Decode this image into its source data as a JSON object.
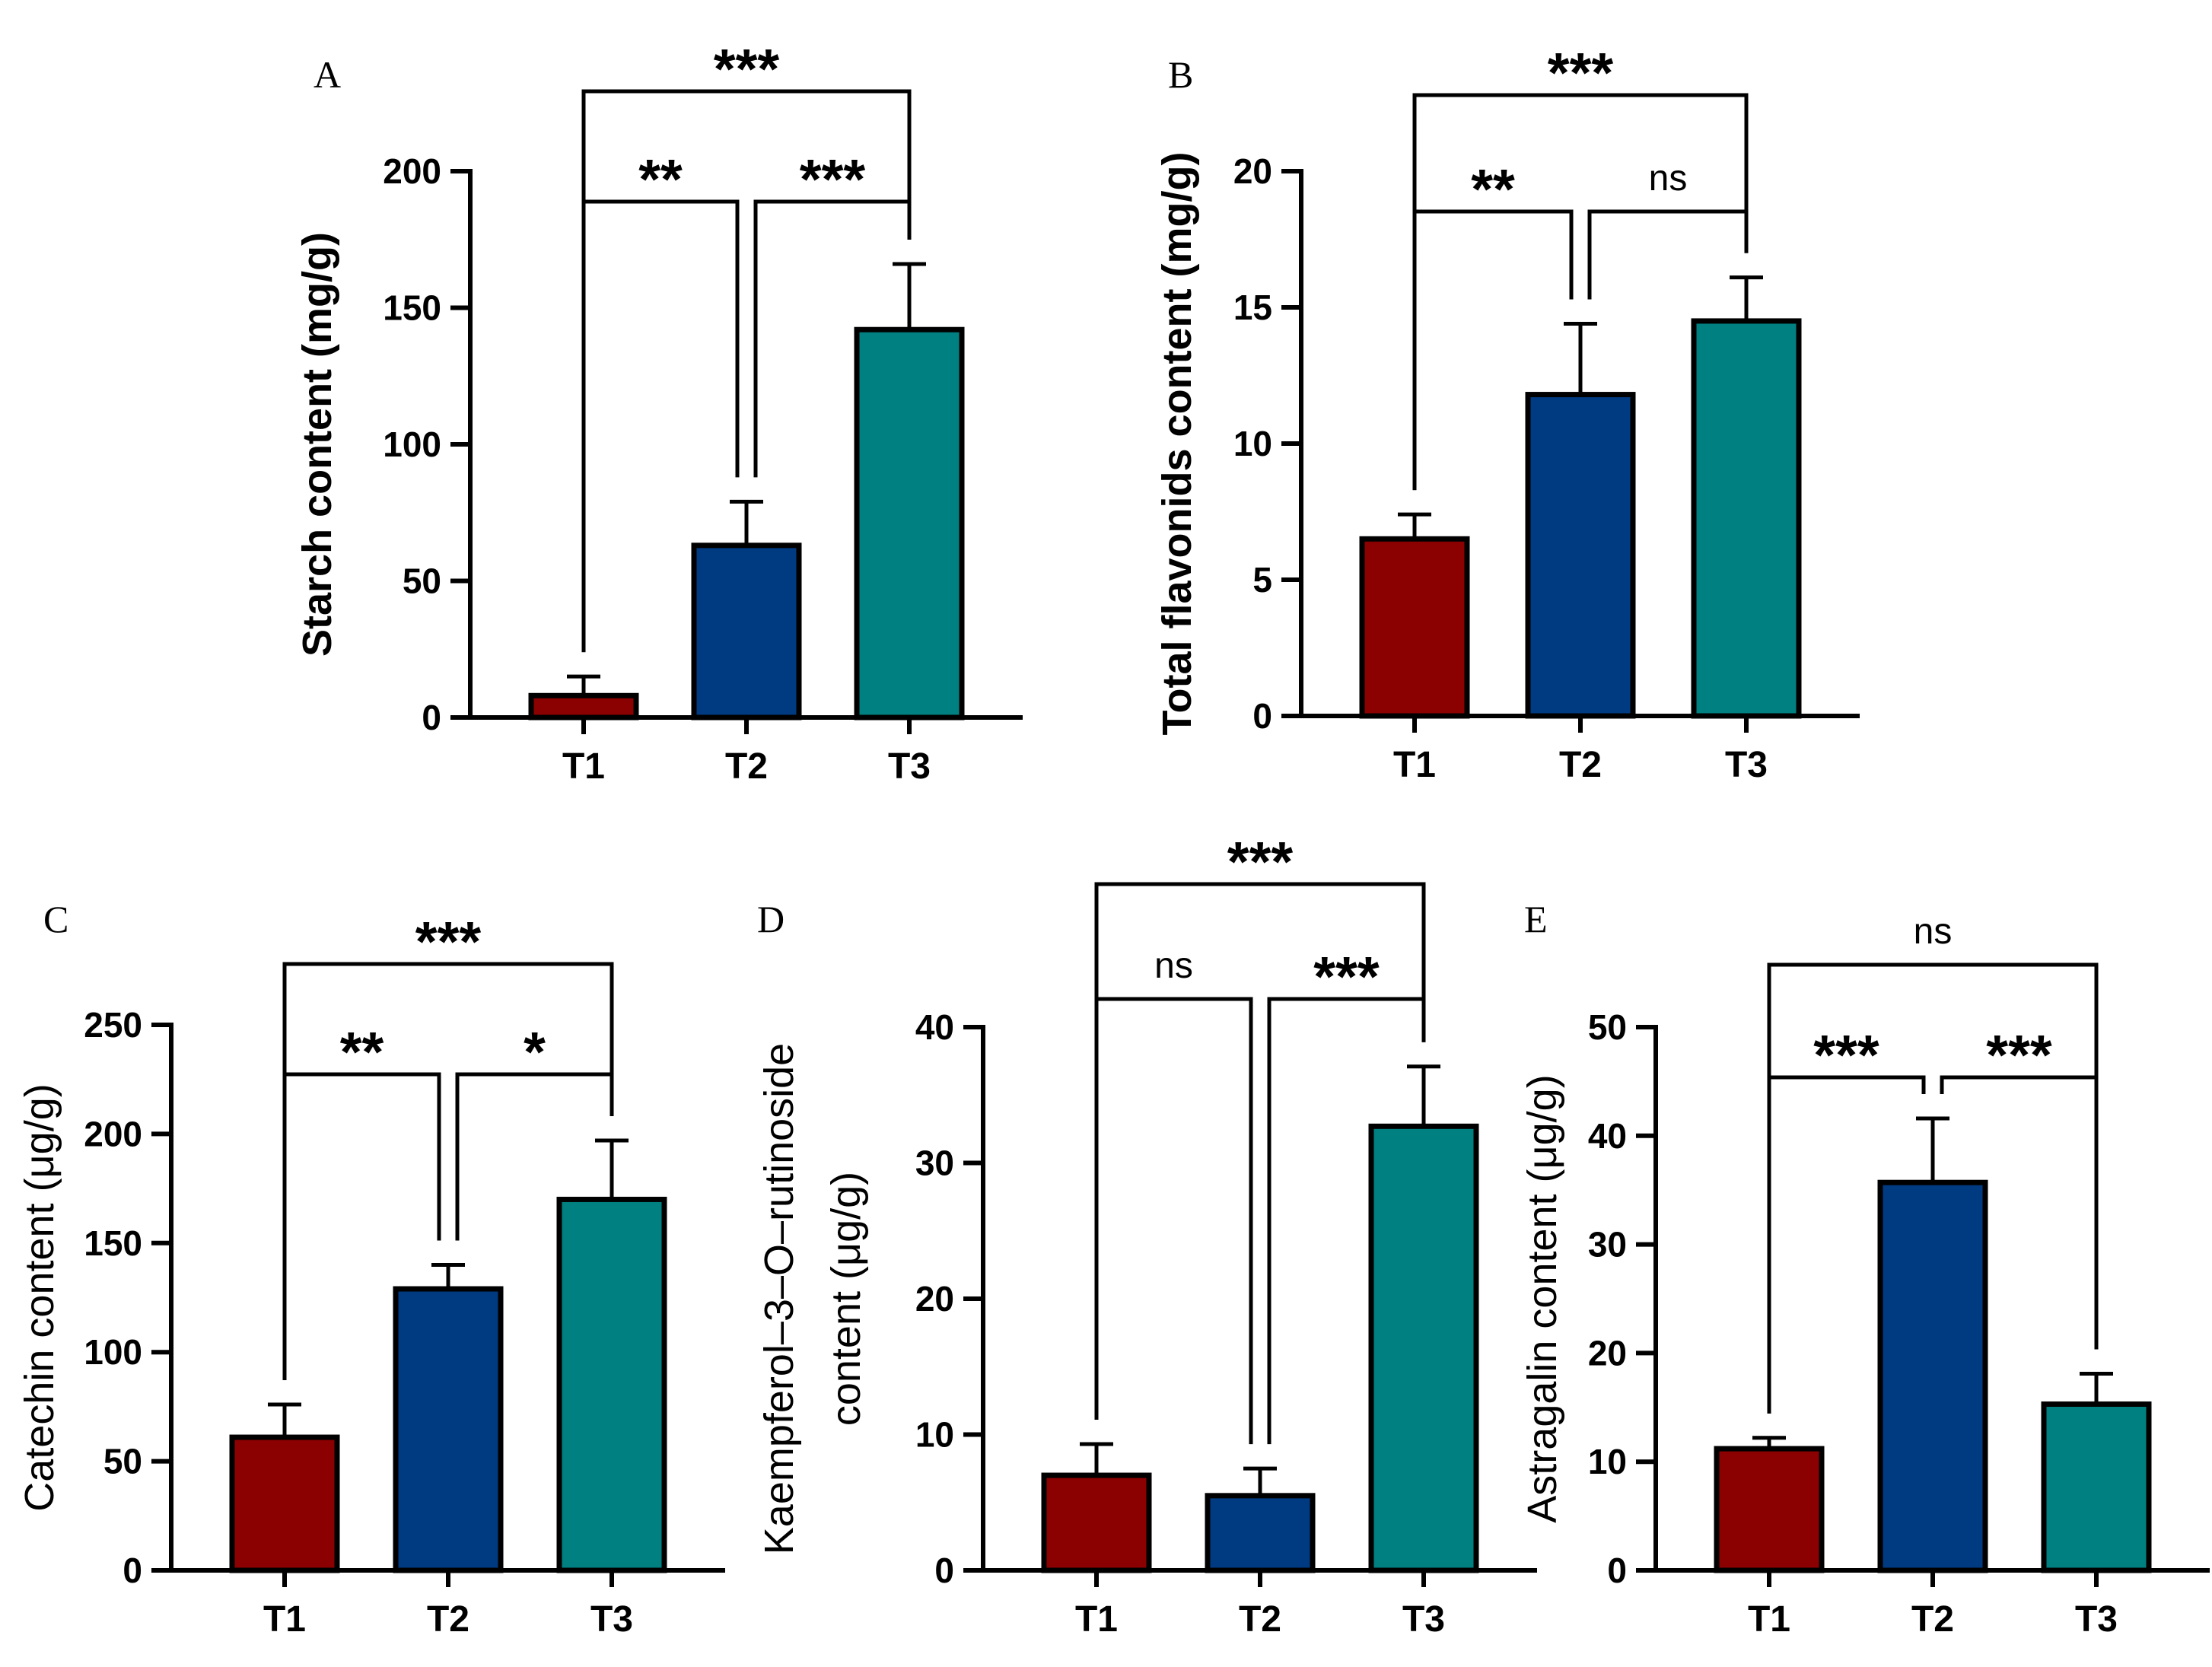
{
  "colors": {
    "T1": "#8b0000",
    "T2": "#003a80",
    "T3": "#008080"
  },
  "chart_data": [
    {
      "panel": "A",
      "type": "bar",
      "categories": [
        "T1",
        "T2",
        "T3"
      ],
      "values": [
        8,
        63,
        142
      ],
      "errors": [
        7,
        16,
        24
      ],
      "ylabel": "Starch content (mg/g)",
      "ylim": [
        0,
        200
      ],
      "yticks": [
        0,
        50,
        100,
        150,
        200
      ],
      "comparisons": [
        {
          "from": "T1",
          "to": "T2",
          "label": "**"
        },
        {
          "from": "T2",
          "to": "T3",
          "label": "***"
        },
        {
          "from": "T1",
          "to": "T3",
          "label": "***"
        }
      ]
    },
    {
      "panel": "B",
      "type": "bar",
      "categories": [
        "T1",
        "T2",
        "T3"
      ],
      "values": [
        6.5,
        11.8,
        14.5
      ],
      "errors": [
        0.9,
        2.6,
        1.6
      ],
      "ylabel": "Total flavonids content (mg/g)",
      "ylim": [
        0,
        20
      ],
      "yticks": [
        0,
        5,
        10,
        15,
        20
      ],
      "comparisons": [
        {
          "from": "T1",
          "to": "T2",
          "label": "**"
        },
        {
          "from": "T2",
          "to": "T3",
          "label": "ns"
        },
        {
          "from": "T1",
          "to": "T3",
          "label": "***"
        }
      ]
    },
    {
      "panel": "C",
      "type": "bar",
      "categories": [
        "T1",
        "T2",
        "T3"
      ],
      "values": [
        61,
        129,
        170
      ],
      "errors": [
        15,
        11,
        27
      ],
      "ylabel": "Catechin content (μg/g)",
      "ylim": [
        0,
        250
      ],
      "yticks": [
        0,
        50,
        100,
        150,
        200,
        250
      ],
      "comparisons": [
        {
          "from": "T1",
          "to": "T2",
          "label": "**"
        },
        {
          "from": "T2",
          "to": "T3",
          "label": "*"
        },
        {
          "from": "T1",
          "to": "T3",
          "label": "***"
        }
      ]
    },
    {
      "panel": "D",
      "type": "bar",
      "categories": [
        "T1",
        "T2",
        "T3"
      ],
      "values": [
        7,
        5.5,
        32.7
      ],
      "errors": [
        2.3,
        2.0,
        4.4
      ],
      "ylabel_lines": [
        "Kaempferol–3–O–rutinoside",
        "content (μg/g)"
      ],
      "ylim": [
        0,
        40
      ],
      "yticks": [
        0,
        10,
        20,
        30,
        40
      ],
      "comparisons": [
        {
          "from": "T1",
          "to": "T2",
          "label": "ns"
        },
        {
          "from": "T2",
          "to": "T3",
          "label": "***"
        },
        {
          "from": "T1",
          "to": "T3",
          "label": "***"
        }
      ]
    },
    {
      "panel": "E",
      "type": "bar",
      "categories": [
        "T1",
        "T2",
        "T3"
      ],
      "values": [
        11.2,
        35.7,
        15.3
      ],
      "errors": [
        1.0,
        5.9,
        2.8
      ],
      "ylabel": "Astragalin content (μg/g)",
      "ylim": [
        0,
        50
      ],
      "yticks": [
        0,
        10,
        20,
        30,
        40,
        50
      ],
      "comparisons": [
        {
          "from": "T1",
          "to": "T2",
          "label": "***"
        },
        {
          "from": "T2",
          "to": "T3",
          "label": "***"
        },
        {
          "from": "T1",
          "to": "T3",
          "label": "ns"
        }
      ]
    }
  ]
}
